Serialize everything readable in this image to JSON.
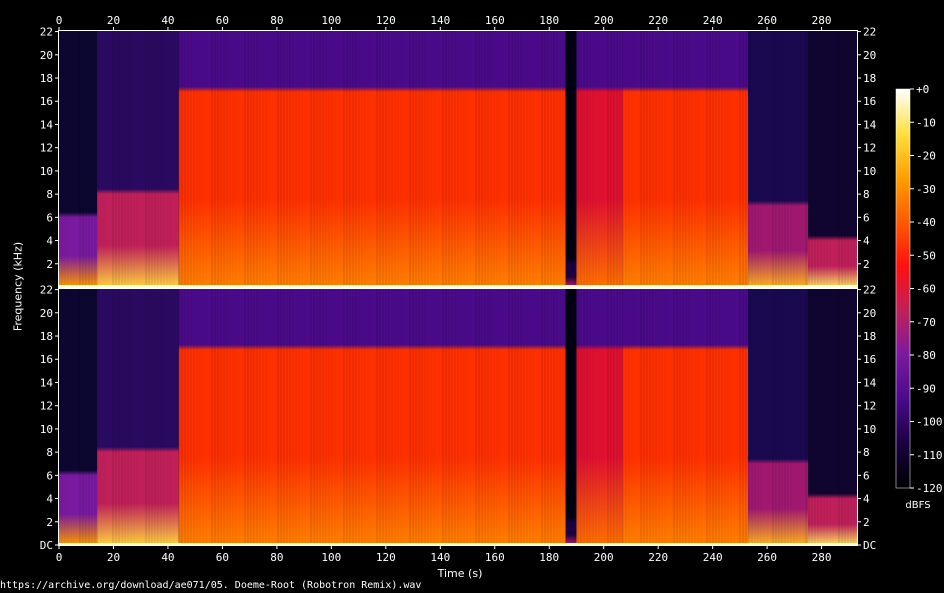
{
  "chart_data": [
    {
      "type": "heatmap",
      "panel": "channel 1",
      "xlabel": "Time (s)",
      "ylabel": "Frequency (kHz)",
      "xlim": [
        0,
        293
      ],
      "ylim": [
        0,
        22.05
      ],
      "x_ticks": [
        "0",
        "20",
        "40",
        "60",
        "80",
        "100",
        "120",
        "140",
        "160",
        "180",
        "200",
        "220",
        "240",
        "260",
        "280"
      ],
      "y_ticks": [
        "2",
        "4",
        "6",
        "8",
        "10",
        "12",
        "14",
        "16",
        "18",
        "20",
        "22"
      ],
      "segments": [
        {
          "t_start": 0,
          "t_end": 14,
          "level": "quiet",
          "cutoff_khz": 6
        },
        {
          "t_start": 14,
          "t_end": 44,
          "level": "intro",
          "cutoff_khz": 8
        },
        {
          "t_start": 44,
          "t_end": 186,
          "level": "loud",
          "cutoff_khz": 16.8
        },
        {
          "t_start": 186,
          "t_end": 190,
          "level": "gap",
          "cutoff_khz": 2
        },
        {
          "t_start": 190,
          "t_end": 207,
          "level": "medium",
          "cutoff_khz": 16.8
        },
        {
          "t_start": 207,
          "t_end": 253,
          "level": "loud",
          "cutoff_khz": 16.8
        },
        {
          "t_start": 253,
          "t_end": 275,
          "level": "outro",
          "cutoff_khz": 7
        },
        {
          "t_start": 275,
          "t_end": 293,
          "level": "fade",
          "cutoff_khz": 4
        }
      ]
    },
    {
      "type": "heatmap",
      "panel": "channel 2",
      "xlabel": "Time (s)",
      "ylabel": "Frequency (kHz)",
      "xlim": [
        0,
        293
      ],
      "ylim": [
        0,
        22.05
      ],
      "x_ticks": [
        "0",
        "20",
        "40",
        "60",
        "80",
        "100",
        "120",
        "140",
        "160",
        "180",
        "200",
        "220",
        "240",
        "260",
        "280"
      ],
      "y_ticks": [
        "DC",
        "2",
        "4",
        "6",
        "8",
        "10",
        "12",
        "14",
        "16",
        "18",
        "20",
        "22"
      ],
      "segments": [
        {
          "t_start": 0,
          "t_end": 14,
          "level": "quiet",
          "cutoff_khz": 6
        },
        {
          "t_start": 14,
          "t_end": 44,
          "level": "intro",
          "cutoff_khz": 8
        },
        {
          "t_start": 44,
          "t_end": 186,
          "level": "loud",
          "cutoff_khz": 16.8
        },
        {
          "t_start": 186,
          "t_end": 190,
          "level": "gap",
          "cutoff_khz": 2
        },
        {
          "t_start": 190,
          "t_end": 207,
          "level": "medium",
          "cutoff_khz": 16.8
        },
        {
          "t_start": 207,
          "t_end": 253,
          "level": "loud",
          "cutoff_khz": 16.8
        },
        {
          "t_start": 253,
          "t_end": 275,
          "level": "outro",
          "cutoff_khz": 7
        },
        {
          "t_start": 275,
          "t_end": 293,
          "level": "fade",
          "cutoff_khz": 4
        }
      ]
    }
  ],
  "colorbar": {
    "label": "dBFS",
    "range": [
      -120,
      0
    ],
    "ticks": [
      "+0",
      "-10",
      "-20",
      "-30",
      "-40",
      "-50",
      "-60",
      "-70",
      "-80",
      "-90",
      "-100",
      "-110",
      "-120"
    ],
    "colormap": [
      "#000000",
      "#1a0040",
      "#4a0a8a",
      "#7a1aa0",
      "#c0205a",
      "#ff1010",
      "#ff5a00",
      "#ffa000",
      "#ffe040",
      "#ffffff"
    ]
  },
  "source_label": "https://archive.org/download/ae071/05. Doeme-Root (Robotron Remix).wav",
  "xlabel": "Time (s)",
  "ylabel": "Frequency (kHz)"
}
